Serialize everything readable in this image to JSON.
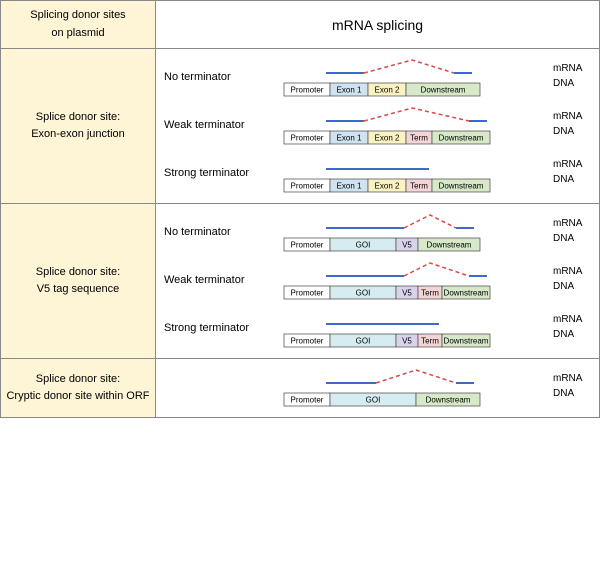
{
  "header": {
    "left_title1": "Splicing donor sites",
    "left_title2": "on plasmid",
    "right_title": "mRNA splicing"
  },
  "colors": {
    "left_bg": "#fdf5d6",
    "promoter": "#ffffff",
    "exon1": "#cfe4f0",
    "exon2": "#fbf2c4",
    "goi": "#d6ecf0",
    "v5": "#dbd3ea",
    "term": "#f4d5d7",
    "downstream": "#d7e9c8",
    "border": "#444444",
    "mrna": "#4169c8",
    "splice": "#d94848"
  },
  "labels": {
    "promoter": "Promoter",
    "exon1": "Exon 1",
    "exon2": "Exon 2",
    "goi": "GOI",
    "v5": "V5",
    "term": "Term",
    "downstream": "Downstream",
    "mrna": "mRNA",
    "dna": "DNA"
  },
  "rows": [
    {
      "title1": "Splice donor site:",
      "title2": "Exon-exon junction",
      "sub": [
        {
          "label": "No terminator",
          "segments": [
            "promoter",
            "exon1",
            "exon2",
            "downstream"
          ],
          "widths": [
            46,
            38,
            38,
            74
          ],
          "mrna_end": 80,
          "splice_from": 80,
          "splice_peak": 128,
          "splice_end": 170
        },
        {
          "label": "Weak terminator",
          "segments": [
            "promoter",
            "exon1",
            "exon2",
            "term",
            "downstream"
          ],
          "widths": [
            46,
            38,
            38,
            26,
            58
          ],
          "mrna_end": 80,
          "splice_from": 80,
          "splice_peak": 128,
          "splice_end": 185
        },
        {
          "label": "Strong terminator",
          "segments": [
            "promoter",
            "exon1",
            "exon2",
            "term",
            "downstream"
          ],
          "widths": [
            46,
            38,
            38,
            26,
            58
          ],
          "mrna_end": 145,
          "splice_from": null
        }
      ]
    },
    {
      "title1": "Splice donor site:",
      "title2": "V5 tag sequence",
      "sub": [
        {
          "label": "No terminator",
          "segments": [
            "promoter",
            "goi",
            "v5",
            "downstream"
          ],
          "widths": [
            46,
            66,
            22,
            62
          ],
          "mrna_end": 120,
          "splice_from": 120,
          "splice_peak": 146,
          "splice_end": 172
        },
        {
          "label": "Weak terminator",
          "segments": [
            "promoter",
            "goi",
            "v5",
            "term",
            "downstream"
          ],
          "widths": [
            46,
            66,
            22,
            24,
            48
          ],
          "mrna_end": 120,
          "splice_from": 120,
          "splice_peak": 146,
          "splice_end": 185
        },
        {
          "label": "Strong terminator",
          "segments": [
            "promoter",
            "goi",
            "v5",
            "term",
            "downstream"
          ],
          "widths": [
            46,
            66,
            22,
            24,
            48
          ],
          "mrna_end": 155,
          "splice_from": null
        }
      ]
    },
    {
      "title1": "Splice donor site:",
      "title2": "Cryptic donor site within ORF",
      "sub": [
        {
          "label": "",
          "segments": [
            "promoter",
            "goi",
            "downstream"
          ],
          "widths": [
            46,
            86,
            64
          ],
          "mrna_end": 92,
          "splice_from": 92,
          "splice_peak": 132,
          "splice_end": 172
        }
      ]
    }
  ]
}
